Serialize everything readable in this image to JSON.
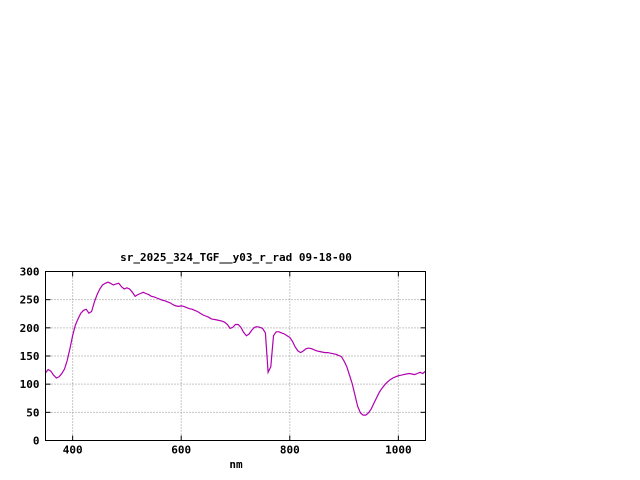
{
  "chart": {
    "title": "sr_2025_324_TGF__y03_r_rad 09-18-00",
    "xlabel": "nm"
  },
  "chart_data": {
    "type": "line",
    "title": "sr_2025_324_TGF__y03_r_rad 09-18-00",
    "xlabel": "nm",
    "ylabel": "",
    "xlim": [
      350,
      1050
    ],
    "ylim": [
      0,
      300
    ],
    "xticks": [
      400,
      600,
      800,
      1000
    ],
    "yticks": [
      0,
      50,
      100,
      150,
      200,
      250,
      300
    ],
    "grid": true,
    "legend": "none",
    "line_color": "#b000b0",
    "series": [
      {
        "name": "sr_2025_324_TGF__y03_r_rad",
        "x": [
          350,
          355,
          360,
          365,
          370,
          375,
          380,
          385,
          390,
          395,
          400,
          405,
          410,
          415,
          420,
          425,
          430,
          435,
          440,
          445,
          450,
          455,
          460,
          465,
          470,
          475,
          480,
          485,
          490,
          495,
          500,
          505,
          510,
          515,
          520,
          525,
          530,
          535,
          540,
          545,
          550,
          555,
          560,
          565,
          570,
          575,
          580,
          585,
          590,
          595,
          600,
          605,
          610,
          615,
          620,
          625,
          630,
          635,
          640,
          645,
          650,
          655,
          660,
          665,
          670,
          675,
          680,
          685,
          690,
          695,
          700,
          705,
          710,
          715,
          720,
          725,
          730,
          735,
          740,
          745,
          750,
          755,
          760,
          765,
          770,
          775,
          780,
          785,
          790,
          795,
          800,
          805,
          810,
          815,
          820,
          825,
          830,
          835,
          840,
          845,
          850,
          855,
          860,
          865,
          870,
          875,
          880,
          885,
          890,
          895,
          900,
          905,
          910,
          915,
          920,
          925,
          930,
          935,
          940,
          945,
          950,
          955,
          960,
          965,
          970,
          975,
          980,
          985,
          990,
          995,
          1000,
          1005,
          1010,
          1015,
          1020,
          1025,
          1030,
          1035,
          1040,
          1045,
          1050
        ],
        "y": [
          120,
          126,
          123,
          116,
          111,
          113,
          119,
          127,
          142,
          163,
          186,
          205,
          216,
          226,
          231,
          233,
          226,
          229,
          246,
          259,
          269,
          276,
          279,
          281,
          279,
          276,
          278,
          279,
          273,
          269,
          271,
          269,
          263,
          256,
          259,
          261,
          263,
          261,
          259,
          256,
          255,
          253,
          251,
          249,
          248,
          246,
          244,
          241,
          239,
          238,
          239,
          238,
          236,
          234,
          233,
          231,
          229,
          226,
          223,
          221,
          219,
          216,
          215,
          214,
          213,
          212,
          210,
          206,
          199,
          201,
          206,
          206,
          201,
          192,
          186,
          189,
          196,
          201,
          202,
          201,
          199,
          191,
          121,
          131,
          186,
          193,
          193,
          191,
          189,
          186,
          183,
          176,
          166,
          159,
          156,
          159,
          163,
          164,
          163,
          161,
          159,
          158,
          157,
          156,
          156,
          155,
          154,
          153,
          151,
          149,
          141,
          131,
          116,
          101,
          81,
          61,
          49,
          45,
          45,
          49,
          56,
          66,
          76,
          86,
          93,
          99,
          104,
          108,
          111,
          113,
          115,
          116,
          117,
          118,
          119,
          118,
          117,
          119,
          121,
          119,
          123
        ]
      }
    ]
  }
}
